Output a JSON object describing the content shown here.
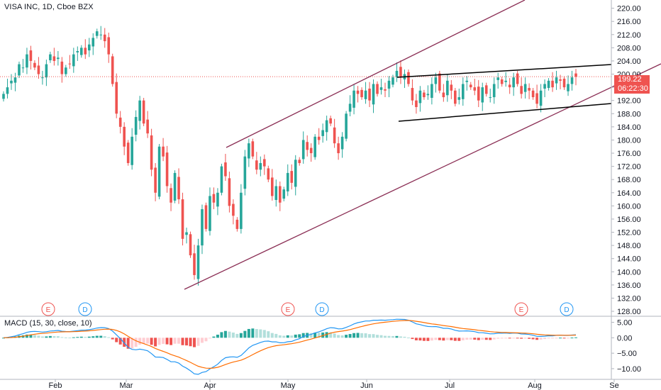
{
  "header": {
    "title": "VISA INC, 1D, Cboe BZX",
    "macd_title": "MACD (15, 30, close, 10)"
  },
  "price_badge": {
    "price": "199.22",
    "countdown": "06:22:30"
  },
  "colors": {
    "up": "#26a69a",
    "down": "#ef5350",
    "channel": "#8b2f55",
    "flag": "#000000",
    "macd_line": "#2196f3",
    "signal_line": "#ff6d00",
    "hist_up_strong": "#26a69a",
    "hist_up_weak": "#b2dfdb",
    "hist_down_strong": "#ef5350",
    "hist_down_weak": "#ffcdd2",
    "event_earnings": "#ef5350",
    "event_dividend": "#2196f3"
  },
  "chart_data": [
    {
      "type": "candlestick",
      "title": "VISA INC, 1D, Cboe BZX",
      "x_ticks": [
        "Feb",
        "Mar",
        "Apr",
        "May",
        "Jun",
        "Jul",
        "Aug",
        "Se"
      ],
      "y_ticks": [
        "220.00",
        "216.00",
        "212.00",
        "208.00",
        "204.00",
        "200.00",
        "196.00",
        "192.00",
        "188.00",
        "184.00",
        "180.00",
        "176.00",
        "172.00",
        "168.00",
        "164.00",
        "160.00",
        "156.00",
        "152.00",
        "148.00",
        "144.00",
        "140.00",
        "136.00",
        "132.00",
        "128.00"
      ],
      "ylim": [
        126.5,
        222.5
      ],
      "last_price": 199.22,
      "closes": [
        194,
        196,
        198,
        199,
        203,
        202,
        206,
        204,
        202,
        200,
        199,
        203,
        206,
        204,
        205,
        200,
        202,
        203,
        206,
        207,
        208,
        206,
        209,
        211,
        213,
        212,
        210,
        206,
        197,
        188,
        184,
        178,
        173,
        181,
        187,
        192,
        185,
        182,
        171,
        164,
        178,
        175,
        166,
        161,
        170,
        162,
        150,
        152,
        145,
        139,
        148,
        159,
        153,
        163,
        161,
        164,
        172,
        169,
        160,
        157,
        153,
        164,
        175,
        179,
        175,
        171,
        173,
        172,
        168,
        163,
        166,
        161,
        165,
        170,
        167,
        174,
        173,
        180,
        177,
        176,
        181,
        180,
        183,
        186,
        185,
        179,
        176,
        181,
        188,
        191,
        195,
        194,
        193,
        195,
        192,
        197,
        194,
        196,
        195,
        198,
        199,
        201,
        199,
        200,
        197,
        192,
        190,
        195,
        193,
        194,
        197,
        199,
        195,
        193,
        198,
        195,
        191,
        193,
        197,
        198,
        196,
        195,
        192,
        196,
        194,
        193,
        197,
        199,
        197,
        198,
        196,
        199,
        197,
        194,
        197,
        195,
        193,
        191,
        195,
        197,
        198,
        196,
        199,
        198,
        196,
        197,
        199,
        199.22
      ],
      "events": [
        {
          "label": "E",
          "kind": "earnings"
        },
        {
          "label": "D",
          "kind": "dividend"
        },
        {
          "label": "E",
          "kind": "earnings"
        },
        {
          "label": "D",
          "kind": "dividend"
        },
        {
          "label": "E",
          "kind": "earnings"
        },
        {
          "label": "D",
          "kind": "dividend"
        }
      ]
    },
    {
      "type": "macd",
      "title": "MACD (15, 30, close, 10)",
      "y_ticks": [
        "5.00",
        "0.00",
        "−5.00",
        "−10.00"
      ],
      "ylim": [
        -13,
        6.5
      ]
    }
  ]
}
